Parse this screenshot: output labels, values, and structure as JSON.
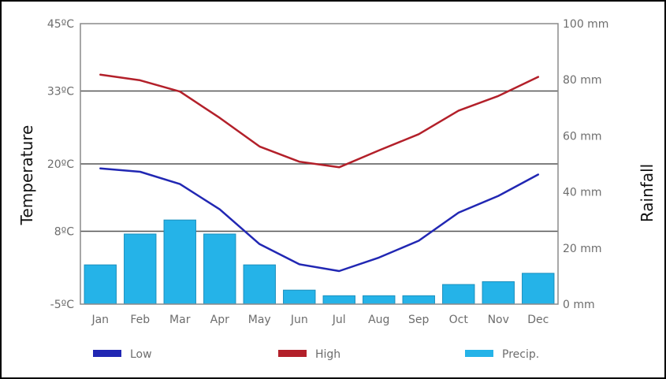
{
  "chart_data": {
    "type": "bar+line",
    "categories": [
      "Jan",
      "Feb",
      "Mar",
      "Apr",
      "May",
      "Jun",
      "Jul",
      "Aug",
      "Sep",
      "Oct",
      "Nov",
      "Dec"
    ],
    "temperature_axis": {
      "label": "Temperature",
      "min": -5,
      "max": 45,
      "ticks": [
        -5,
        8,
        20,
        33,
        45
      ],
      "tick_labels": [
        "-5ºC",
        "8ºC",
        "20ºC",
        "33ºC",
        "45ºC"
      ]
    },
    "rainfall_axis": {
      "label": "Rainfall",
      "min": 0,
      "max": 100,
      "ticks": [
        0,
        20,
        40,
        60,
        80,
        100
      ],
      "tick_labels": [
        "0 mm",
        "20 mm",
        "40 mm",
        "60 mm",
        "80 mm",
        "100 mm"
      ]
    },
    "series": [
      {
        "name": "Low",
        "type": "line",
        "axis": "temperature",
        "color": "#2127b3",
        "values": [
          19.2,
          18.6,
          16.4,
          11.9,
          5.7,
          2.1,
          0.9,
          3.3,
          6.3,
          11.3,
          14.3,
          18.1
        ]
      },
      {
        "name": "High",
        "type": "line",
        "axis": "temperature",
        "color": "#b3202a",
        "values": [
          35.9,
          34.9,
          32.9,
          28.2,
          23.1,
          20.4,
          19.4,
          22.4,
          25.3,
          29.5,
          32.1,
          35.5
        ]
      },
      {
        "name": "Precip.",
        "type": "bar",
        "axis": "rainfall",
        "color": "#25b3e8",
        "values": [
          14,
          25,
          30,
          25,
          14,
          5,
          3,
          3,
          3,
          7,
          8,
          11
        ]
      }
    ],
    "legend": {
      "placement": "bottom"
    },
    "grid": {
      "horizontal": true
    }
  }
}
